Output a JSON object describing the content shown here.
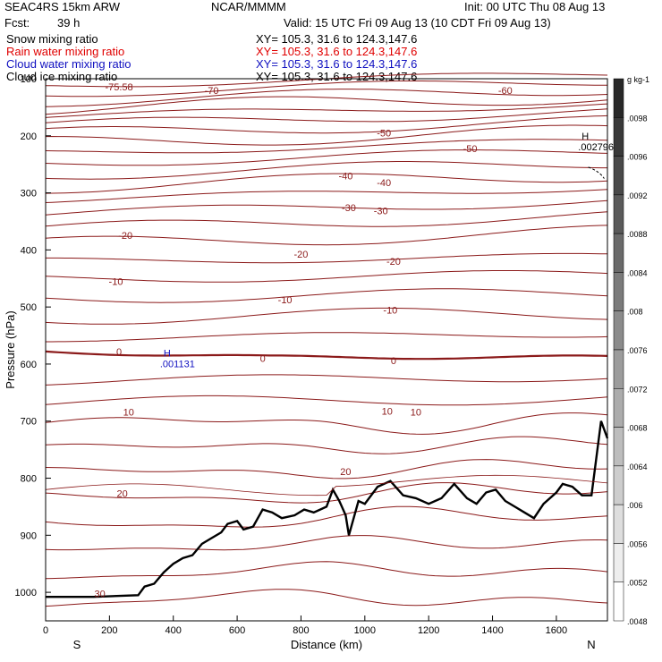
{
  "header": {
    "model": "SEAC4RS 15km ARW",
    "org": "NCAR/MMMM",
    "init": "Init: 00 UTC Thu 08 Aug 13",
    "fcst_label": "Fcst:",
    "fcst_value": "39 h",
    "valid": "Valid: 15 UTC Fri 09 Aug 13 (10 CDT Fri 09 Aug 13)",
    "fields": [
      {
        "name": "Snow mixing ratio",
        "xy": "XY= 105.3, 31.6 to 124.3,147.6",
        "color": "#000000"
      },
      {
        "name": "Rain water mixing ratio",
        "xy": "XY= 105.3, 31.6 to 124.3,147.6",
        "color": "#e00000"
      },
      {
        "name": "Cloud water mixing ratio",
        "xy": "XY= 105.3, 31.6 to 124.3,147.6",
        "color": "#1010c0"
      },
      {
        "name": "Cloud ice mixing ratio",
        "xy": "XY= 105.3, 31.6 to 124.3,147.6",
        "color": "#000000"
      }
    ]
  },
  "chart_data": {
    "type": "contour-cross-section",
    "xlabel": "Distance (km)",
    "ylabel": "Pressure (hPa)",
    "xlim": [
      0,
      1760
    ],
    "ylim": [
      1050,
      100
    ],
    "x_ticks": [
      0,
      200,
      400,
      600,
      800,
      1000,
      1200,
      1400,
      1600
    ],
    "y_ticks": [
      100,
      200,
      300,
      400,
      500,
      600,
      700,
      800,
      900,
      1000
    ],
    "x_tick_labels": [
      "0",
      "200",
      "400",
      "600",
      "800",
      "1000",
      "1200",
      "1400",
      "1600"
    ],
    "y_tick_labels": [
      "100",
      "200",
      "300",
      "400",
      "500",
      "600",
      "700",
      "800",
      "900",
      "1000"
    ],
    "end_labels": {
      "left": "S",
      "right": "N"
    },
    "temperature_contours_C": [
      -70,
      -60,
      -50,
      -40,
      -30,
      -20,
      -10,
      0,
      10,
      20,
      30
    ],
    "temperature_labels": [
      {
        "text": "-75.58",
        "x": 230,
        "p": 114
      },
      {
        "text": "-70",
        "x": 520,
        "p": 120
      },
      {
        "text": "-60",
        "x": 1440,
        "p": 120
      },
      {
        "text": "-50",
        "x": 1060,
        "p": 195
      },
      {
        "text": "-50",
        "x": 1330,
        "p": 222
      },
      {
        "text": "-40",
        "x": 940,
        "p": 270
      },
      {
        "text": "-40",
        "x": 1060,
        "p": 282
      },
      {
        "text": "-30",
        "x": 950,
        "p": 326
      },
      {
        "text": "-30",
        "x": 1050,
        "p": 331
      },
      {
        "text": "-20",
        "x": 250,
        "p": 374
      },
      {
        "text": "-20",
        "x": 800,
        "p": 407
      },
      {
        "text": "-20",
        "x": 1090,
        "p": 420
      },
      {
        "text": "-10",
        "x": 220,
        "p": 455
      },
      {
        "text": "-10",
        "x": 750,
        "p": 487
      },
      {
        "text": "-10",
        "x": 1080,
        "p": 505
      },
      {
        "text": "0",
        "x": 230,
        "p": 578
      },
      {
        "text": "0",
        "x": 680,
        "p": 590
      },
      {
        "text": "0",
        "x": 1090,
        "p": 594
      },
      {
        "text": "10",
        "x": 260,
        "p": 684
      },
      {
        "text": "10",
        "x": 1070,
        "p": 682
      },
      {
        "text": "10",
        "x": 1160,
        "p": 684
      },
      {
        "text": "20",
        "x": 240,
        "p": 827
      },
      {
        "text": "20",
        "x": 940,
        "p": 788
      },
      {
        "text": "30",
        "x": 170,
        "p": 1002
      }
    ],
    "maxima": [
      {
        "marker": "H",
        "value": ".001131",
        "x": 420,
        "p": 593,
        "color": "#1010c0"
      },
      {
        "marker": "H",
        "value": ".002796",
        "x": 1730,
        "p": 213,
        "color": "#000000"
      }
    ],
    "colorbar": {
      "unit": "g kg-1",
      "labels": [
        ".0098",
        ".0096",
        ".0092",
        ".0088",
        ".0084",
        ".008",
        ".0076",
        ".0072",
        ".0068",
        ".0064",
        ".006",
        ".0056",
        ".0052",
        ".0048"
      ]
    },
    "grid": false
  }
}
